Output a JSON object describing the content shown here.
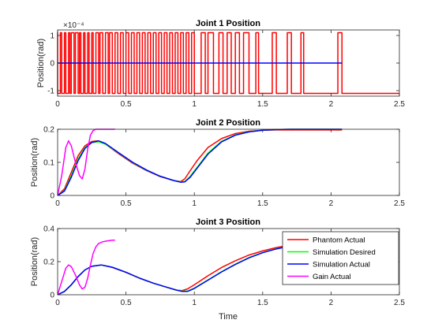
{
  "colors": {
    "phantom_actual": "#ff0000",
    "simulation_desired": "#00ff00",
    "simulation_actual": "#0000ff",
    "gain_actual": "#ff00ff",
    "axis": "#262626"
  },
  "chart_data": [
    {
      "type": "line",
      "title": "Joint 1 Position",
      "xlabel": "",
      "ylabel": "Position(rad)",
      "xlim": [
        0,
        2.5
      ],
      "ylim": [
        -0.00012,
        0.00012
      ],
      "xticks": [
        "0",
        "0.5",
        "1",
        "1.5",
        "2",
        "2.5"
      ],
      "yticks": [
        "-1",
        "0",
        "1"
      ],
      "exponent_label": "×10⁻⁴",
      "grid": false,
      "note_series": "Phantom Actual oscillates between about +1.1e-4 and -1.1e-4 rad; Simulation series stay at 0 until t≈2.08",
      "series": [
        {
          "name": "Phantom Actual",
          "switch_times": [
            0.0,
            0.02,
            0.03,
            0.05,
            0.06,
            0.08,
            0.09,
            0.1,
            0.12,
            0.13,
            0.15,
            0.16,
            0.17,
            0.19,
            0.2,
            0.22,
            0.23,
            0.25,
            0.26,
            0.28,
            0.3,
            0.31,
            0.33,
            0.35,
            0.37,
            0.38,
            0.4,
            0.42,
            0.44,
            0.46,
            0.48,
            0.5,
            0.52,
            0.54,
            0.56,
            0.58,
            0.6,
            0.62,
            0.64,
            0.66,
            0.68,
            0.7,
            0.72,
            0.74,
            0.76,
            0.78,
            0.8,
            0.82,
            0.84,
            0.86,
            0.88,
            0.9,
            0.92,
            0.94,
            0.96,
            0.98,
            1.0,
            1.05,
            1.08,
            1.1,
            1.14,
            1.18,
            1.21,
            1.24,
            1.27,
            1.3,
            1.33,
            1.36,
            1.4,
            1.45,
            1.47,
            1.57,
            1.6,
            1.68,
            1.71,
            1.78,
            1.8,
            2.05,
            2.08
          ],
          "levels": [
            0.00011,
            -0.00011
          ],
          "end_value": -0.00011,
          "end_x": 2.5
        },
        {
          "name": "Simulation Actual",
          "x": [
            0,
            2.08
          ],
          "y": [
            0,
            0
          ]
        }
      ]
    },
    {
      "type": "line",
      "title": "Joint 2 Position",
      "xlabel": "",
      "ylabel": "Position(rad)",
      "xlim": [
        0,
        2.5
      ],
      "ylim": [
        0,
        0.2
      ],
      "xticks": [
        "0",
        "0.5",
        "1",
        "1.5",
        "2",
        "2.5"
      ],
      "yticks": [
        "0",
        "0.1",
        "0.2"
      ],
      "grid": false,
      "series": [
        {
          "name": "Phantom Actual",
          "x": [
            0,
            0.05,
            0.1,
            0.15,
            0.2,
            0.25,
            0.29,
            0.35,
            0.45,
            0.55,
            0.65,
            0.75,
            0.85,
            0.9,
            0.93,
            0.97,
            1.02,
            1.1,
            1.2,
            1.3,
            1.4,
            1.5,
            1.6,
            1.7,
            1.8,
            1.9,
            2.0,
            2.08
          ],
          "y": [
            0,
            0.02,
            0.07,
            0.12,
            0.15,
            0.163,
            0.165,
            0.155,
            0.125,
            0.097,
            0.075,
            0.057,
            0.045,
            0.042,
            0.05,
            0.075,
            0.105,
            0.145,
            0.172,
            0.187,
            0.194,
            0.197,
            0.198,
            0.198,
            0.198,
            0.198,
            0.198,
            0.198
          ]
        },
        {
          "name": "Simulation Desired",
          "x": [
            0,
            0.05,
            0.1,
            0.15,
            0.2,
            0.25,
            0.3,
            0.35,
            0.45,
            0.55,
            0.65,
            0.75,
            0.85,
            0.9,
            0.93,
            0.97,
            1.02,
            1.1,
            1.2,
            1.3,
            1.4,
            1.5,
            1.6,
            1.7,
            1.8,
            1.9,
            2.0,
            2.08
          ],
          "y": [
            0,
            0.015,
            0.06,
            0.11,
            0.145,
            0.16,
            0.162,
            0.155,
            0.127,
            0.099,
            0.076,
            0.058,
            0.045,
            0.041,
            0.042,
            0.058,
            0.085,
            0.128,
            0.164,
            0.183,
            0.193,
            0.197,
            0.199,
            0.2,
            0.2,
            0.2,
            0.2,
            0.2
          ]
        },
        {
          "name": "Simulation Actual",
          "x": [
            0,
            0.05,
            0.1,
            0.15,
            0.2,
            0.25,
            0.3,
            0.35,
            0.45,
            0.55,
            0.65,
            0.75,
            0.85,
            0.9,
            0.93,
            0.97,
            1.02,
            1.1,
            1.2,
            1.3,
            1.4,
            1.5,
            1.6,
            1.7,
            1.8,
            1.9,
            2.0,
            2.08
          ],
          "y": [
            0,
            0.013,
            0.055,
            0.105,
            0.142,
            0.16,
            0.165,
            0.157,
            0.128,
            0.1,
            0.077,
            0.058,
            0.045,
            0.04,
            0.041,
            0.055,
            0.082,
            0.125,
            0.162,
            0.182,
            0.192,
            0.197,
            0.199,
            0.2,
            0.2,
            0.2,
            0.2,
            0.2
          ]
        },
        {
          "name": "Gain Actual",
          "x": [
            0,
            0.03,
            0.06,
            0.08,
            0.1,
            0.13,
            0.16,
            0.18,
            0.2,
            0.22,
            0.24,
            0.26,
            0.28,
            0.3,
            0.33,
            0.36,
            0.4,
            0.42
          ],
          "y": [
            0,
            0.06,
            0.145,
            0.165,
            0.15,
            0.1,
            0.06,
            0.05,
            0.08,
            0.14,
            0.182,
            0.196,
            0.2,
            0.2,
            0.2,
            0.2,
            0.2,
            0.2
          ]
        }
      ]
    },
    {
      "type": "line",
      "title": "Joint 3 Position",
      "xlabel": "Time",
      "ylabel": "Position(rad)",
      "xlim": [
        0,
        2.5
      ],
      "ylim": [
        0,
        0.4
      ],
      "xticks": [
        "0",
        "0.5",
        "1",
        "1.5",
        "2",
        "2.5"
      ],
      "yticks": [
        "0",
        "0.2",
        "0.4"
      ],
      "grid": false,
      "legend": {
        "placement": "bottom-right",
        "entries": [
          "Phantom Actual",
          "Simulation Desired",
          "Simulation Actual",
          "Gain Actual"
        ]
      },
      "series": [
        {
          "name": "Phantom Actual",
          "x": [
            0,
            0.05,
            0.1,
            0.15,
            0.2,
            0.25,
            0.32,
            0.4,
            0.5,
            0.6,
            0.7,
            0.8,
            0.87,
            0.91,
            0.95,
            1.0,
            1.1,
            1.2,
            1.3,
            1.4,
            1.5,
            1.6,
            1.7,
            1.8,
            1.9,
            2.0,
            2.08
          ],
          "y": [
            0,
            0.02,
            0.06,
            0.11,
            0.15,
            0.172,
            0.18,
            0.165,
            0.135,
            0.1,
            0.07,
            0.045,
            0.028,
            0.025,
            0.035,
            0.06,
            0.115,
            0.165,
            0.205,
            0.24,
            0.265,
            0.285,
            0.3,
            0.31,
            0.318,
            0.323,
            0.326
          ]
        },
        {
          "name": "Simulation Desired",
          "x": [
            0,
            0.05,
            0.1,
            0.15,
            0.2,
            0.25,
            0.32,
            0.4,
            0.5,
            0.6,
            0.7,
            0.8,
            0.87,
            0.91,
            0.95,
            1.0,
            1.1,
            1.2,
            1.3,
            1.4,
            1.5,
            1.6,
            1.7,
            1.8,
            1.9,
            2.0,
            2.08
          ],
          "y": [
            0,
            0.02,
            0.06,
            0.11,
            0.15,
            0.172,
            0.18,
            0.166,
            0.136,
            0.1,
            0.07,
            0.045,
            0.028,
            0.022,
            0.022,
            0.04,
            0.09,
            0.14,
            0.185,
            0.225,
            0.255,
            0.278,
            0.295,
            0.307,
            0.316,
            0.322,
            0.325
          ]
        },
        {
          "name": "Simulation Actual",
          "x": [
            0,
            0.05,
            0.1,
            0.15,
            0.2,
            0.25,
            0.32,
            0.4,
            0.5,
            0.6,
            0.7,
            0.8,
            0.87,
            0.91,
            0.95,
            1.0,
            1.1,
            1.2,
            1.3,
            1.4,
            1.5,
            1.6,
            1.7,
            1.8,
            1.9,
            2.0,
            2.08
          ],
          "y": [
            0,
            0.02,
            0.06,
            0.11,
            0.15,
            0.172,
            0.18,
            0.166,
            0.136,
            0.1,
            0.07,
            0.045,
            0.028,
            0.02,
            0.02,
            0.038,
            0.088,
            0.138,
            0.183,
            0.223,
            0.254,
            0.277,
            0.294,
            0.306,
            0.315,
            0.321,
            0.324
          ]
        },
        {
          "name": "Gain Actual",
          "x": [
            0,
            0.03,
            0.06,
            0.08,
            0.1,
            0.13,
            0.16,
            0.18,
            0.2,
            0.22,
            0.24,
            0.26,
            0.28,
            0.3,
            0.33,
            0.36,
            0.4,
            0.42
          ],
          "y": [
            0,
            0.08,
            0.16,
            0.18,
            0.17,
            0.12,
            0.06,
            0.035,
            0.045,
            0.1,
            0.18,
            0.25,
            0.29,
            0.31,
            0.32,
            0.325,
            0.33,
            0.33
          ]
        }
      ]
    }
  ]
}
